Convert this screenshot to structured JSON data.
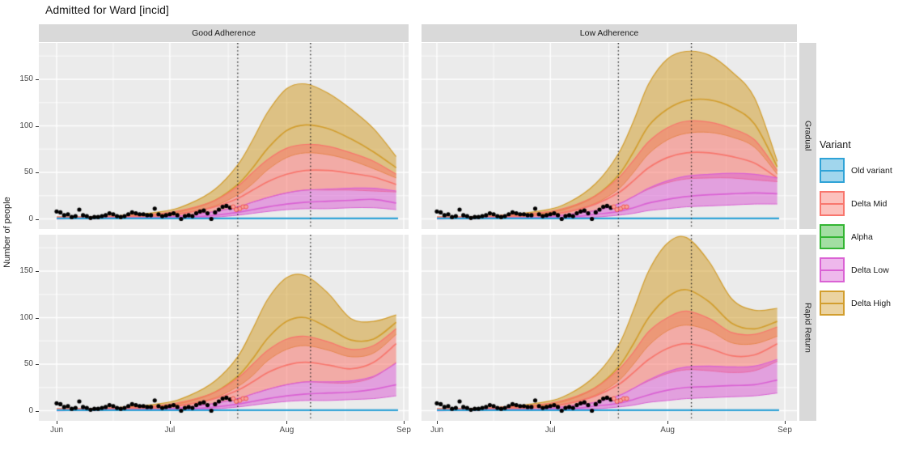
{
  "title": "Admitted for Ward [incid]",
  "axes": {
    "y_label": "Number of people",
    "x_ticks": [
      {
        "day": 0,
        "label": "Jun"
      },
      {
        "day": 30,
        "label": "Jul"
      },
      {
        "day": 61,
        "label": "Aug"
      },
      {
        "day": 92,
        "label": "Sep"
      }
    ],
    "y_ticks": [
      0,
      50,
      100,
      150
    ]
  },
  "facets": {
    "col_labels": [
      "Good Adherence",
      "Low Adherence"
    ],
    "row_labels": [
      "Gradual",
      "Rapid Return"
    ]
  },
  "legend": {
    "title": "Variant",
    "items": [
      {
        "label": "Old variant",
        "color": "#2FA3D7"
      },
      {
        "label": "Delta Mid",
        "color": "#F8766D"
      },
      {
        "label": "Alpha",
        "color": "#33B533"
      },
      {
        "label": "Delta Low",
        "color": "#DA62D4"
      },
      {
        "label": "Delta High",
        "color": "#D29E2F"
      }
    ]
  },
  "style": {
    "panel_bg": "#EBEBEB",
    "strip_bg": "#D9D9D9",
    "grid_color": "#FFFFFF",
    "fill_alpha": 0.55,
    "vline_color": "#1A1A1A",
    "point_color": "#000000",
    "recent_point_fill": "#F7A09A",
    "recent_point_stroke": "#EF5A50",
    "variant_colors": {
      "old_variant": "#2FA3D7",
      "delta_mid": "#F8766D",
      "alpha": "#33B533",
      "delta_low": "#DA62D4",
      "delta_high": "#D29E2F"
    }
  },
  "chart_data": {
    "type": "area",
    "title": "Admitted for Ward [incid]",
    "ylabel": "Number of people",
    "x_unit": "days since Jun 1",
    "ylim": [
      0,
      186
    ],
    "y_major_gridlines": [
      0,
      50,
      100,
      150
    ],
    "y_minor_gridlines": [
      25,
      75,
      125,
      175
    ],
    "x_major_gridline_days": [
      0,
      30,
      61,
      92
    ],
    "x_minor_gridline_days": [
      15,
      45.5,
      76.5
    ],
    "vline_days": [
      48,
      67.3
    ],
    "control_days": [
      0,
      14,
      28,
      35,
      42,
      48,
      52,
      56,
      61,
      66,
      72,
      78,
      84,
      90
    ],
    "panels": {
      "good_gradual": {
        "delta_high": {
          "upper": [
            2,
            3,
            8,
            16,
            32,
            58,
            85,
            115,
            140,
            145,
            135,
            118,
            97,
            67
          ],
          "median": [
            1,
            2,
            5,
            10,
            20,
            37,
            55,
            76,
            95,
            101,
            97,
            86,
            72,
            55
          ],
          "lower": [
            1,
            1,
            3,
            7,
            14,
            26,
            38,
            53,
            66,
            71,
            69,
            63,
            54,
            44
          ]
        },
        "delta_mid": {
          "upper": [
            2,
            3,
            6,
            11,
            20,
            35,
            50,
            64,
            76,
            80,
            78,
            71,
            62,
            48
          ],
          "median": [
            1,
            2,
            4,
            7,
            13,
            22,
            31,
            40,
            48,
            52,
            52,
            49,
            45,
            37
          ],
          "lower": [
            1,
            1,
            2,
            4,
            8,
            13,
            18,
            23,
            28,
            31,
            31,
            31,
            30,
            29
          ]
        },
        "delta_low": {
          "upper": [
            1,
            1,
            2,
            4,
            8,
            13,
            18,
            23,
            28,
            31,
            32,
            33,
            33,
            30
          ],
          "median": [
            0,
            1,
            1,
            2,
            4,
            7,
            10,
            13,
            16,
            18,
            19,
            20,
            21,
            17
          ],
          "lower": [
            0,
            0,
            1,
            1,
            2,
            4,
            6,
            8,
            10,
            11,
            11,
            12,
            12,
            10
          ]
        }
      },
      "low_gradual": {
        "delta_high": {
          "upper": [
            2,
            3,
            9,
            18,
            38,
            70,
            105,
            145,
            172,
            180,
            176,
            158,
            130,
            62
          ],
          "median": [
            1,
            2,
            6,
            12,
            25,
            47,
            72,
            100,
            118,
            127,
            128,
            120,
            102,
            56
          ],
          "lower": [
            1,
            1,
            4,
            8,
            17,
            32,
            50,
            70,
            85,
            92,
            93,
            88,
            77,
            48
          ]
        },
        "delta_mid": {
          "upper": [
            2,
            3,
            7,
            13,
            25,
            44,
            63,
            83,
            98,
            105,
            104,
            97,
            85,
            52
          ],
          "median": [
            1,
            2,
            4,
            8,
            16,
            28,
            41,
            55,
            66,
            71,
            71,
            67,
            60,
            44
          ],
          "lower": [
            1,
            1,
            2,
            5,
            9,
            16,
            24,
            32,
            39,
            43,
            44,
            44,
            42,
            40
          ]
        },
        "delta_low": {
          "upper": [
            1,
            1,
            2,
            5,
            9,
            16,
            24,
            33,
            41,
            46,
            48,
            49,
            48,
            44
          ],
          "median": [
            0,
            1,
            1,
            2,
            5,
            8,
            12,
            17,
            21,
            24,
            26,
            27,
            28,
            27
          ],
          "lower": [
            0,
            0,
            1,
            1,
            2,
            4,
            6,
            9,
            11,
            13,
            14,
            15,
            16,
            16
          ]
        }
      },
      "good_rapid": {
        "delta_high": {
          "upper": [
            2,
            3,
            8,
            16,
            32,
            58,
            88,
            120,
            143,
            145,
            126,
            99,
            96,
            103
          ],
          "median": [
            1,
            2,
            5,
            10,
            20,
            37,
            56,
            78,
            96,
            100,
            89,
            76,
            77,
            95
          ],
          "lower": [
            1,
            1,
            3,
            7,
            14,
            26,
            38,
            54,
            66,
            70,
            65,
            58,
            62,
            82
          ]
        },
        "delta_mid": {
          "upper": [
            2,
            3,
            6,
            11,
            20,
            35,
            50,
            65,
            77,
            80,
            74,
            66,
            70,
            88
          ],
          "median": [
            1,
            2,
            4,
            7,
            13,
            22,
            31,
            41,
            49,
            52,
            49,
            45,
            52,
            72
          ],
          "lower": [
            1,
            1,
            2,
            4,
            8,
            13,
            18,
            23,
            28,
            31,
            30,
            30,
            36,
            52
          ]
        },
        "delta_low": {
          "upper": [
            1,
            1,
            2,
            4,
            8,
            13,
            18,
            23,
            28,
            31,
            31,
            32,
            37,
            51
          ],
          "median": [
            0,
            1,
            1,
            2,
            4,
            7,
            10,
            13,
            16,
            18,
            19,
            20,
            23,
            28
          ],
          "lower": [
            0,
            0,
            1,
            1,
            2,
            4,
            6,
            8,
            10,
            11,
            11,
            12,
            13,
            16
          ]
        }
      },
      "low_rapid": {
        "delta_high": {
          "upper": [
            2,
            3,
            9,
            18,
            38,
            70,
            108,
            150,
            180,
            186,
            160,
            120,
            108,
            110
          ],
          "median": [
            1,
            2,
            6,
            12,
            25,
            47,
            72,
            100,
            122,
            130,
            117,
            94,
            88,
            96
          ],
          "lower": [
            1,
            1,
            4,
            8,
            17,
            32,
            50,
            70,
            86,
            92,
            86,
            73,
            72,
            80
          ]
        },
        "delta_mid": {
          "upper": [
            2,
            3,
            7,
            13,
            25,
            44,
            63,
            85,
            100,
            107,
            99,
            84,
            82,
            90
          ],
          "median": [
            1,
            2,
            4,
            8,
            16,
            28,
            41,
            55,
            67,
            72,
            67,
            59,
            60,
            72
          ],
          "lower": [
            1,
            1,
            2,
            5,
            9,
            16,
            24,
            32,
            40,
            44,
            43,
            41,
            43,
            53
          ]
        },
        "delta_low": {
          "upper": [
            1,
            1,
            2,
            5,
            9,
            16,
            24,
            33,
            42,
            47,
            48,
            47,
            48,
            55
          ],
          "median": [
            0,
            1,
            1,
            2,
            5,
            8,
            12,
            17,
            22,
            25,
            26,
            27,
            28,
            33
          ],
          "lower": [
            0,
            0,
            1,
            1,
            2,
            4,
            6,
            9,
            11,
            13,
            14,
            15,
            16,
            19
          ]
        }
      }
    },
    "flat_series": {
      "old_variant": {
        "upper": 1.2,
        "median": 0.5,
        "lower": 0
      },
      "alpha": {
        "upper": 0.8,
        "median": 0.3,
        "lower": 0
      }
    },
    "observed": {
      "black": [
        [
          0,
          8
        ],
        [
          1,
          7
        ],
        [
          2,
          4
        ],
        [
          3,
          5
        ],
        [
          4,
          2
        ],
        [
          5,
          3
        ],
        [
          6,
          10
        ],
        [
          7,
          4
        ],
        [
          8,
          3
        ],
        [
          9,
          1
        ],
        [
          10,
          2
        ],
        [
          11,
          2
        ],
        [
          12,
          3
        ],
        [
          13,
          4
        ],
        [
          14,
          6
        ],
        [
          15,
          5
        ],
        [
          16,
          3
        ],
        [
          17,
          2
        ],
        [
          18,
          3
        ],
        [
          19,
          5
        ],
        [
          20,
          7
        ],
        [
          21,
          6
        ],
        [
          22,
          5
        ],
        [
          23,
          5
        ],
        [
          24,
          4
        ],
        [
          25,
          4
        ],
        [
          26,
          11
        ],
        [
          27,
          5
        ],
        [
          28,
          3
        ],
        [
          29,
          4
        ],
        [
          30,
          5
        ],
        [
          31,
          6
        ],
        [
          32,
          4
        ],
        [
          33,
          0
        ],
        [
          34,
          3
        ],
        [
          35,
          4
        ],
        [
          36,
          3
        ],
        [
          37,
          6
        ],
        [
          38,
          8
        ],
        [
          39,
          9
        ],
        [
          40,
          6
        ],
        [
          41,
          0
        ],
        [
          42,
          7
        ],
        [
          43,
          10
        ],
        [
          44,
          13
        ],
        [
          45,
          14
        ],
        [
          46,
          12
        ]
      ],
      "recent": [
        [
          46.8,
          13
        ],
        [
          47.6,
          10
        ],
        [
          48.6,
          11
        ],
        [
          49.4,
          13
        ],
        [
          50.2,
          13
        ]
      ]
    }
  }
}
